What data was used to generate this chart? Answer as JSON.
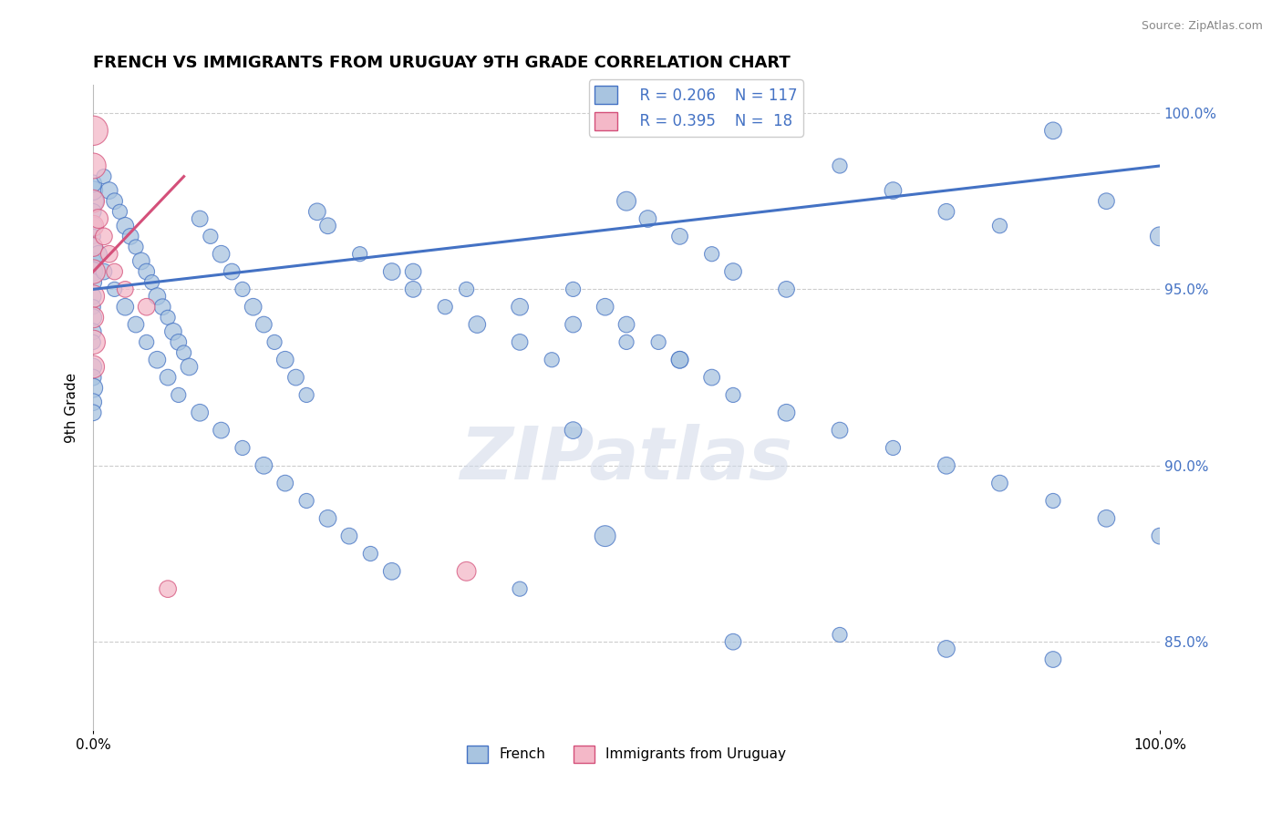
{
  "title": "FRENCH VS IMMIGRANTS FROM URUGUAY 9TH GRADE CORRELATION CHART",
  "source_text": "Source: ZipAtlas.com",
  "ylabel": "9th Grade",
  "legend_r1": "R = 0.206",
  "legend_n1": "N = 117",
  "legend_r2": "R = 0.395",
  "legend_n2": "N =  18",
  "watermark": "ZIPatlas",
  "blue_color": "#a8c4e0",
  "blue_line_color": "#4472c4",
  "pink_color": "#f4b8c8",
  "pink_line_color": "#d4507a",
  "blue_scatter_x": [
    0.0,
    0.0,
    0.0,
    0.0,
    0.0,
    0.0,
    0.0,
    0.0,
    0.0,
    0.0,
    0.0,
    0.0,
    0.0,
    0.0,
    0.0,
    0.0,
    0.0,
    0.0,
    0.0,
    0.0,
    1.0,
    1.5,
    2.0,
    2.5,
    3.0,
    3.5,
    4.0,
    4.5,
    5.0,
    5.5,
    6.0,
    6.5,
    7.0,
    7.5,
    8.0,
    8.5,
    9.0,
    10.0,
    11.0,
    12.0,
    13.0,
    14.0,
    15.0,
    16.0,
    17.0,
    18.0,
    19.0,
    20.0,
    21.0,
    22.0,
    25.0,
    28.0,
    30.0,
    33.0,
    36.0,
    40.0,
    43.0,
    45.0,
    48.0,
    50.0,
    52.0,
    55.0,
    58.0,
    60.0,
    65.0,
    70.0,
    75.0,
    80.0,
    85.0,
    90.0,
    95.0,
    100.0,
    0.5,
    1.0,
    2.0,
    3.0,
    4.0,
    5.0,
    6.0,
    7.0,
    8.0,
    10.0,
    12.0,
    14.0,
    16.0,
    18.0,
    20.0,
    22.0,
    24.0,
    26.0,
    28.0,
    30.0,
    35.0,
    40.0,
    45.0,
    50.0,
    55.0,
    60.0,
    70.0,
    80.0,
    90.0,
    45.0,
    48.0,
    50.0,
    53.0,
    55.0,
    58.0,
    60.0,
    65.0,
    70.0,
    75.0,
    80.0,
    85.0,
    90.0,
    95.0,
    100.0,
    40.0
  ],
  "blue_scatter_y": [
    97.5,
    97.8,
    98.0,
    97.2,
    96.8,
    96.5,
    96.2,
    95.8,
    95.5,
    95.2,
    94.8,
    94.5,
    94.2,
    93.8,
    93.5,
    92.8,
    92.5,
    92.2,
    91.8,
    91.5,
    98.2,
    97.8,
    97.5,
    97.2,
    96.8,
    96.5,
    96.2,
    95.8,
    95.5,
    95.2,
    94.8,
    94.5,
    94.2,
    93.8,
    93.5,
    93.2,
    92.8,
    97.0,
    96.5,
    96.0,
    95.5,
    95.0,
    94.5,
    94.0,
    93.5,
    93.0,
    92.5,
    92.0,
    97.2,
    96.8,
    96.0,
    95.5,
    95.0,
    94.5,
    94.0,
    93.5,
    93.0,
    91.0,
    88.0,
    97.5,
    97.0,
    96.5,
    96.0,
    95.5,
    95.0,
    98.5,
    97.8,
    97.2,
    96.8,
    99.5,
    97.5,
    96.5,
    96.0,
    95.5,
    95.0,
    94.5,
    94.0,
    93.5,
    93.0,
    92.5,
    92.0,
    91.5,
    91.0,
    90.5,
    90.0,
    89.5,
    89.0,
    88.5,
    88.0,
    87.5,
    87.0,
    95.5,
    95.0,
    94.5,
    94.0,
    93.5,
    93.0,
    85.0,
    85.2,
    84.8,
    84.5,
    95.0,
    94.5,
    94.0,
    93.5,
    93.0,
    92.5,
    92.0,
    91.5,
    91.0,
    90.5,
    90.0,
    89.5,
    89.0,
    88.5,
    88.0,
    86.5
  ],
  "blue_scatter_s": [
    30,
    25,
    20,
    18,
    22,
    15,
    20,
    18,
    25,
    20,
    18,
    15,
    20,
    18,
    15,
    20,
    18,
    25,
    20,
    18,
    15,
    20,
    18,
    15,
    20,
    18,
    15,
    20,
    18,
    15,
    20,
    18,
    15,
    20,
    18,
    15,
    20,
    18,
    15,
    20,
    18,
    15,
    20,
    18,
    15,
    20,
    18,
    15,
    20,
    18,
    15,
    20,
    18,
    15,
    20,
    18,
    15,
    20,
    30,
    25,
    20,
    18,
    15,
    20,
    18,
    15,
    20,
    18,
    15,
    20,
    18,
    25,
    20,
    18,
    15,
    20,
    18,
    15,
    20,
    18,
    15,
    20,
    18,
    15,
    20,
    18,
    15,
    20,
    18,
    15,
    20,
    18,
    15,
    20,
    18,
    15,
    20,
    18,
    15,
    20,
    18,
    15,
    20,
    18,
    15,
    20,
    18,
    15,
    20,
    18,
    15,
    20,
    18,
    15,
    20,
    18,
    15
  ],
  "pink_scatter_x": [
    0.0,
    0.0,
    0.0,
    0.0,
    0.0,
    0.0,
    0.0,
    0.0,
    0.0,
    0.0,
    0.5,
    1.0,
    1.5,
    2.0,
    3.0,
    5.0,
    7.0,
    35.0
  ],
  "pink_scatter_y": [
    99.5,
    98.5,
    97.5,
    96.8,
    96.2,
    95.5,
    94.8,
    94.2,
    93.5,
    92.8,
    97.0,
    96.5,
    96.0,
    95.5,
    95.0,
    94.5,
    86.5,
    87.0
  ],
  "pink_scatter_s": [
    60,
    45,
    35,
    30,
    25,
    40,
    35,
    30,
    40,
    35,
    25,
    20,
    20,
    18,
    18,
    20,
    20,
    25
  ],
  "xmin": 0.0,
  "xmax": 100.0,
  "ymin": 82.5,
  "ymax": 100.8,
  "ytick_vals": [
    85.0,
    90.0,
    95.0,
    100.0
  ],
  "ytick_labels": [
    "85.0%",
    "90.0%",
    "95.0%",
    "100.0%"
  ],
  "blue_trend": [
    0.0,
    100.0,
    95.0,
    98.5
  ],
  "pink_trend": [
    0.0,
    8.5,
    95.5,
    98.2
  ]
}
